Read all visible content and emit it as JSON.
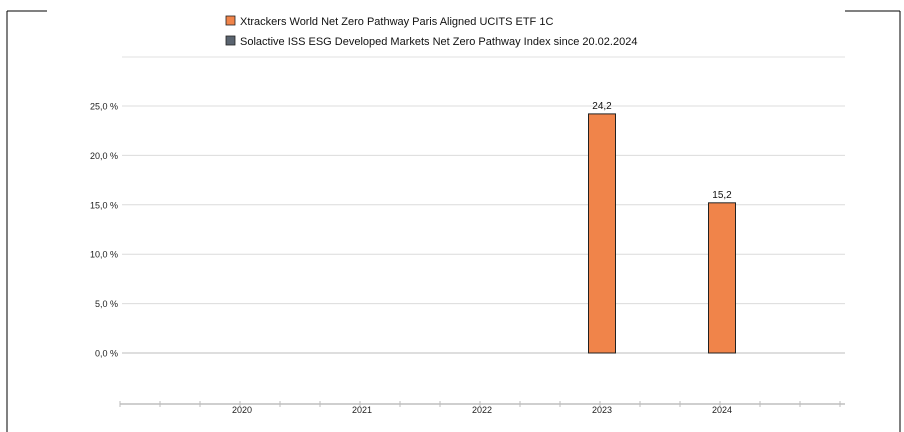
{
  "chart_data": {
    "type": "bar",
    "categories": [
      "2020",
      "2021",
      "2022",
      "2023",
      "2024"
    ],
    "series": [
      {
        "name": "Xtrackers World Net Zero Pathway Paris Aligned UCITS ETF 1C",
        "color": "#f0844a",
        "values": [
          null,
          null,
          null,
          24.2,
          15.2
        ],
        "data_labels": [
          "",
          "",
          "",
          "24,2",
          "15,2"
        ]
      },
      {
        "name": "Solactive ISS ESG Developed Markets Net Zero Pathway Index since 20.02.2024",
        "color": "#5a6470",
        "values": [
          null,
          null,
          null,
          null,
          null
        ]
      }
    ],
    "y_ticks": [
      {
        "value": 0,
        "label": "0,0 %"
      },
      {
        "value": 5,
        "label": "5,0 %"
      },
      {
        "value": 10,
        "label": "10,0 %"
      },
      {
        "value": 15,
        "label": "15,0 %"
      },
      {
        "value": 20,
        "label": "20,0 %"
      },
      {
        "value": 25,
        "label": "25,0 %"
      }
    ],
    "ylim": [
      0,
      25
    ],
    "grid": true,
    "legend_position": "top"
  }
}
